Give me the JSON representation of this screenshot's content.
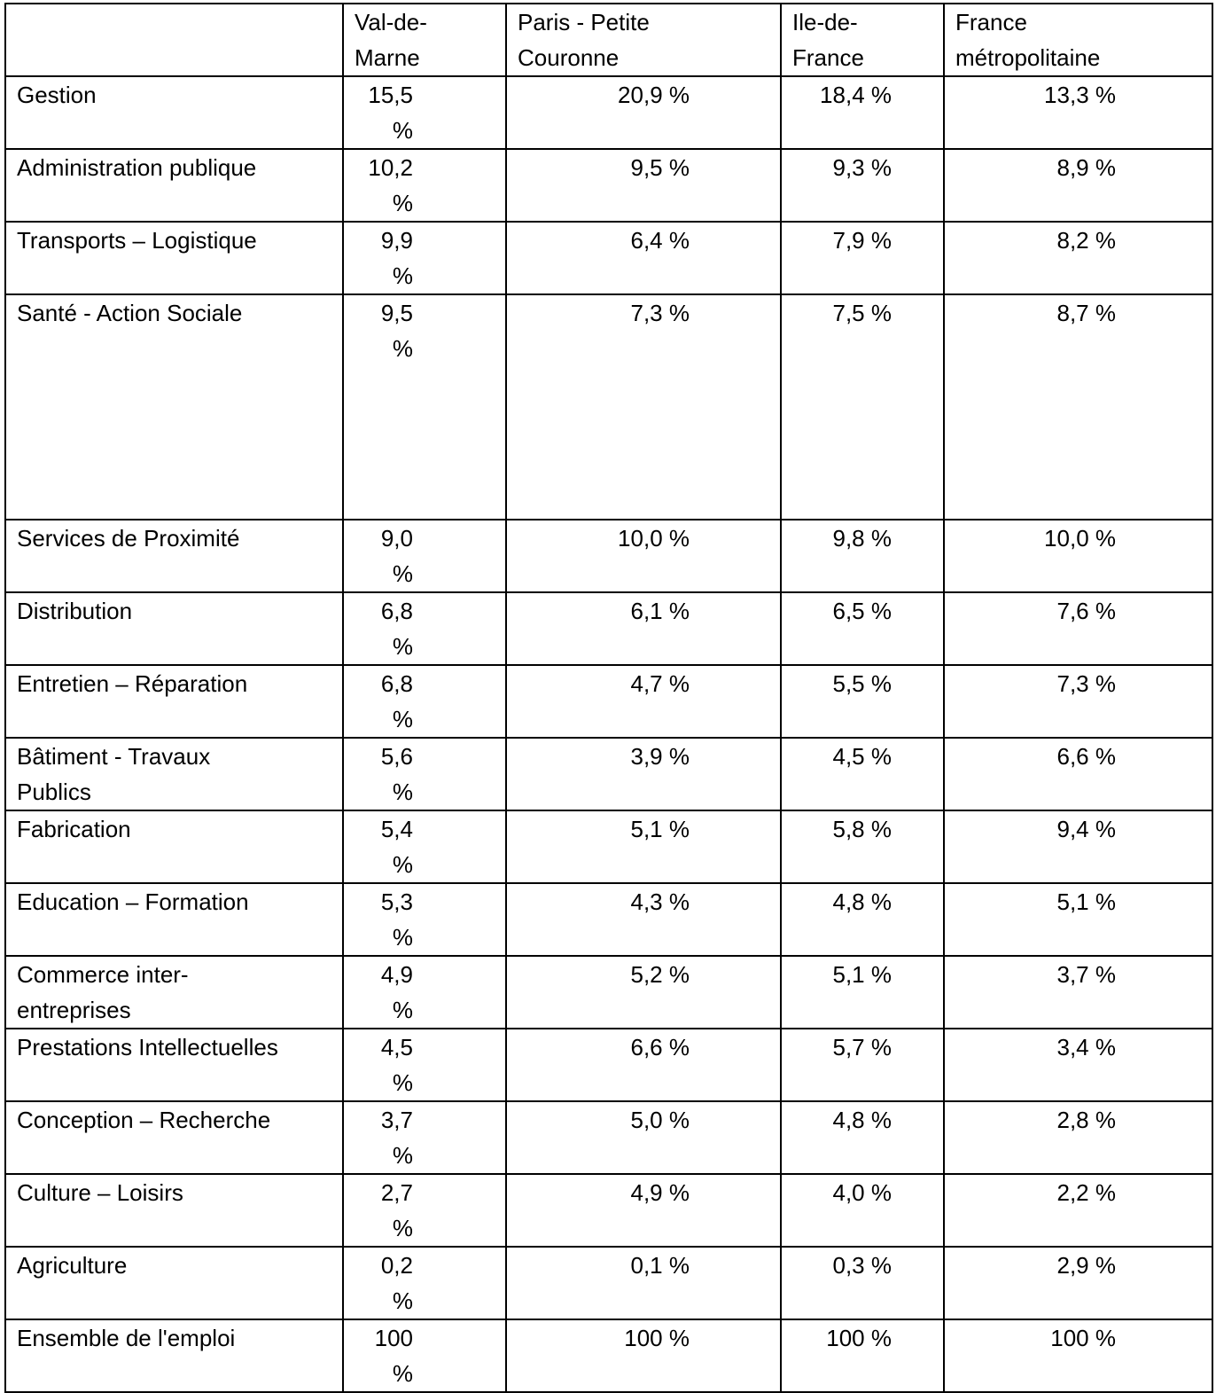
{
  "columns": [
    "",
    "Val-de-Marne",
    "Paris - Petite Couronne",
    "Ile-de-France",
    "France métropolitaine"
  ],
  "headers": {
    "c1": [
      "Val-de-",
      "Marne"
    ],
    "c2": [
      "Paris - Petite",
      "Couronne"
    ],
    "c3": [
      "Ile-de-",
      "France"
    ],
    "c4": [
      "France",
      "métropolitaine"
    ]
  },
  "rows": [
    {
      "label": "Gestion",
      "values": [
        "15,5 %",
        "20,9 %",
        "18,4 %",
        "13,3 %"
      ]
    },
    {
      "label": "Administration publique",
      "values": [
        "10,2 %",
        "9,5 %",
        "9,3 %",
        "8,9 %"
      ]
    },
    {
      "label": "Transports – Logistique",
      "values": [
        "9,9 %",
        "6,4 %",
        "7,9 %",
        "8,2 %"
      ]
    },
    {
      "label": "Santé - Action Sociale",
      "values": [
        "9,5 %",
        "7,3 %",
        "7,5 %",
        "8,7 %"
      ]
    },
    {
      "label": "Services de Proximité",
      "values": [
        "9,0 %",
        "10,0 %",
        "9,8 %",
        "10,0 %"
      ]
    },
    {
      "label": "Distribution",
      "values": [
        "6,8 %",
        "6,1 %",
        "6,5 %",
        "7,6 %"
      ]
    },
    {
      "label": "Entretien – Réparation",
      "values": [
        "6,8 %",
        "4,7 %",
        "5,5 %",
        "7,3 %"
      ]
    },
    {
      "label": "Bâtiment - Travaux Publics",
      "label_lines": [
        "Bâtiment - Travaux",
        "Publics"
      ],
      "values": [
        "5,6 %",
        "3,9 %",
        "4,5 %",
        "6,6 %"
      ]
    },
    {
      "label": "Fabrication",
      "values": [
        "5,4 %",
        "5,1 %",
        "5,8 %",
        "9,4 %"
      ]
    },
    {
      "label": "Education – Formation",
      "values": [
        "5,3 %",
        "4,3 %",
        "4,8 %",
        "5,1 %"
      ]
    },
    {
      "label": "Commerce inter-entreprises",
      "label_lines": [
        "Commerce inter-",
        "entreprises"
      ],
      "values": [
        "4,9 %",
        "5,2 %",
        "5,1 %",
        "3,7 %"
      ]
    },
    {
      "label": "Prestations Intellectuelles",
      "values": [
        "4,5 %",
        "6,6 %",
        "5,7 %",
        "3,4 %"
      ]
    },
    {
      "label": "Conception – Recherche",
      "values": [
        "3,7 %",
        "5,0 %",
        "4,8 %",
        "2,8 %"
      ]
    },
    {
      "label": "Culture – Loisirs",
      "values": [
        "2,7 %",
        "4,9 %",
        "4,0 %",
        "2,2 %"
      ]
    },
    {
      "label": "Agriculture",
      "values": [
        "0,2 %",
        "0,1 %",
        "0,3 %",
        "2,9 %"
      ]
    },
    {
      "label": "Ensemble de l'emploi",
      "values": [
        "100 %",
        "100 %",
        "100 %",
        "100 %"
      ]
    }
  ]
}
